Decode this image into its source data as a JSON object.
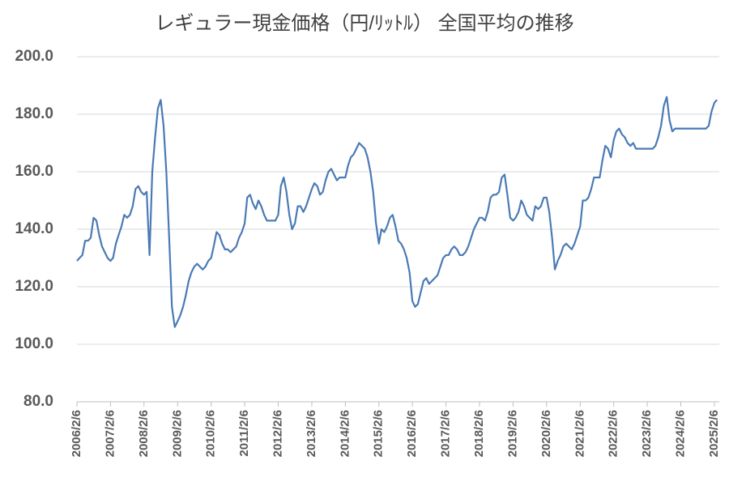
{
  "chart_data": {
    "type": "line",
    "title": "レギュラー現金価格（円/ﾘｯﾄﾙ） 全国平均の推移",
    "x": [
      "2006/2/6",
      "2006/3/6",
      "2006/4/6",
      "2006/5/6",
      "2006/6/6",
      "2006/7/6",
      "2006/8/6",
      "2006/9/6",
      "2006/10/6",
      "2006/11/6",
      "2006/12/6",
      "2007/1/6",
      "2007/2/6",
      "2007/3/6",
      "2007/4/6",
      "2007/5/6",
      "2007/6/6",
      "2007/7/6",
      "2007/8/6",
      "2007/9/6",
      "2007/10/6",
      "2007/11/6",
      "2007/12/6",
      "2008/1/6",
      "2008/2/6",
      "2008/3/6",
      "2008/4/6",
      "2008/5/6",
      "2008/6/6",
      "2008/7/6",
      "2008/8/6",
      "2008/9/6",
      "2008/10/6",
      "2008/11/6",
      "2008/12/6",
      "2009/1/6",
      "2009/2/6",
      "2009/3/6",
      "2009/4/6",
      "2009/5/6",
      "2009/6/6",
      "2009/7/6",
      "2009/8/6",
      "2009/9/6",
      "2009/10/6",
      "2009/11/6",
      "2009/12/6",
      "2010/1/6",
      "2010/2/6",
      "2010/3/6",
      "2010/4/6",
      "2010/5/6",
      "2010/6/6",
      "2010/7/6",
      "2010/8/6",
      "2010/9/6",
      "2010/10/6",
      "2010/11/6",
      "2010/12/6",
      "2011/1/6",
      "2011/2/6",
      "2011/3/6",
      "2011/4/6",
      "2011/5/6",
      "2011/6/6",
      "2011/7/6",
      "2011/8/6",
      "2011/9/6",
      "2011/10/6",
      "2011/11/6",
      "2011/12/6",
      "2012/1/6",
      "2012/2/6",
      "2012/3/6",
      "2012/4/6",
      "2012/5/6",
      "2012/6/6",
      "2012/7/6",
      "2012/8/6",
      "2012/9/6",
      "2012/10/6",
      "2012/11/6",
      "2012/12/6",
      "2013/1/6",
      "2013/2/6",
      "2013/3/6",
      "2013/4/6",
      "2013/5/6",
      "2013/6/6",
      "2013/7/6",
      "2013/8/6",
      "2013/9/6",
      "2013/10/6",
      "2013/11/6",
      "2013/12/6",
      "2014/1/6",
      "2014/2/6",
      "2014/3/6",
      "2014/4/6",
      "2014/5/6",
      "2014/6/6",
      "2014/7/6",
      "2014/8/6",
      "2014/9/6",
      "2014/10/6",
      "2014/11/6",
      "2014/12/6",
      "2015/1/6",
      "2015/2/6",
      "2015/3/6",
      "2015/4/6",
      "2015/5/6",
      "2015/6/6",
      "2015/7/6",
      "2015/8/6",
      "2015/9/6",
      "2015/10/6",
      "2015/11/6",
      "2015/12/6",
      "2016/1/6",
      "2016/2/6",
      "2016/3/6",
      "2016/4/6",
      "2016/5/6",
      "2016/6/6",
      "2016/7/6",
      "2016/8/6",
      "2016/9/6",
      "2016/10/6",
      "2016/11/6",
      "2016/12/6",
      "2017/1/6",
      "2017/2/6",
      "2017/3/6",
      "2017/4/6",
      "2017/5/6",
      "2017/6/6",
      "2017/7/6",
      "2017/8/6",
      "2017/9/6",
      "2017/10/6",
      "2017/11/6",
      "2017/12/6",
      "2018/1/6",
      "2018/2/6",
      "2018/3/6",
      "2018/4/6",
      "2018/5/6",
      "2018/6/6",
      "2018/7/6",
      "2018/8/6",
      "2018/9/6",
      "2018/10/6",
      "2018/11/6",
      "2018/12/6",
      "2019/1/6",
      "2019/2/6",
      "2019/3/6",
      "2019/4/6",
      "2019/5/6",
      "2019/6/6",
      "2019/7/6",
      "2019/8/6",
      "2019/9/6",
      "2019/10/6",
      "2019/11/6",
      "2019/12/6",
      "2020/1/6",
      "2020/2/6",
      "2020/3/6",
      "2020/4/6",
      "2020/5/6",
      "2020/6/6",
      "2020/7/6",
      "2020/8/6",
      "2020/9/6",
      "2020/10/6",
      "2020/11/6",
      "2020/12/6",
      "2021/1/6",
      "2021/2/6",
      "2021/3/6",
      "2021/4/6",
      "2021/5/6",
      "2021/6/6",
      "2021/7/6",
      "2021/8/6",
      "2021/9/6",
      "2021/10/6",
      "2021/11/6",
      "2021/12/6",
      "2022/1/6",
      "2022/2/6",
      "2022/3/6",
      "2022/4/6",
      "2022/5/6",
      "2022/6/6",
      "2022/7/6",
      "2022/8/6",
      "2022/9/6",
      "2022/10/6",
      "2022/11/6",
      "2022/12/6",
      "2023/1/6",
      "2023/2/6",
      "2023/3/6",
      "2023/4/6",
      "2023/5/6",
      "2023/6/6",
      "2023/7/6",
      "2023/8/6",
      "2023/9/6",
      "2023/10/6",
      "2023/11/6",
      "2023/12/6",
      "2024/1/6",
      "2024/2/6",
      "2024/3/6",
      "2024/4/6",
      "2024/5/6",
      "2024/6/6",
      "2024/7/6",
      "2024/8/6",
      "2024/9/6",
      "2024/10/6",
      "2024/11/6",
      "2024/12/6",
      "2025/1/6",
      "2025/2/6",
      "2025/3/6"
    ],
    "series": [
      {
        "color": "#4a7ab5",
        "values": [
          129,
          130,
          131,
          136,
          136,
          137,
          144,
          143,
          138,
          134,
          132,
          130,
          129,
          130,
          135,
          138,
          141,
          145,
          144,
          145,
          148,
          154,
          155,
          153,
          152,
          153,
          131,
          160,
          172,
          182,
          185,
          176,
          160,
          137,
          113,
          106,
          108,
          110,
          113,
          117,
          122,
          125,
          127,
          128,
          127,
          126,
          127,
          129,
          130,
          134,
          139,
          138,
          135,
          133,
          133,
          132,
          133,
          134,
          137,
          139,
          142,
          151,
          152,
          149,
          147,
          150,
          148,
          145,
          143,
          143,
          143,
          143,
          145,
          155,
          158,
          153,
          145,
          140,
          142,
          148,
          148,
          146,
          148,
          151,
          154,
          156,
          155,
          152,
          153,
          157,
          160,
          161,
          159,
          157,
          158,
          158,
          158,
          162,
          165,
          166,
          168,
          170,
          169,
          168,
          165,
          160,
          153,
          142,
          135,
          140,
          139,
          141,
          144,
          145,
          141,
          136,
          135,
          133,
          130,
          125,
          115,
          113,
          114,
          118,
          122,
          123,
          121,
          122,
          123,
          124,
          127,
          130,
          131,
          131,
          133,
          134,
          133,
          131,
          131,
          132,
          134,
          137,
          140,
          142,
          144,
          144,
          143,
          146,
          151,
          152,
          152,
          153,
          158,
          159,
          152,
          144,
          143,
          144,
          146,
          150,
          148,
          145,
          144,
          143,
          148,
          147,
          148,
          151,
          151,
          146,
          137,
          126,
          129,
          131,
          134,
          135,
          134,
          133,
          135,
          138,
          141,
          150,
          150,
          151,
          154,
          158,
          158,
          158,
          164,
          169,
          168,
          165,
          171,
          174,
          175,
          173,
          172,
          170,
          169,
          170,
          168,
          168,
          168,
          168,
          168,
          168,
          168,
          169,
          172,
          176,
          183,
          186,
          178,
          174,
          175,
          175,
          175,
          175,
          175,
          175,
          175,
          175,
          175,
          175,
          175,
          175,
          176,
          181,
          184,
          185
        ]
      }
    ],
    "xlim": [
      "2006/2/6",
      "2025/3/31"
    ],
    "xticks": [
      "2006/2/6",
      "2007/2/6",
      "2008/2/6",
      "2009/2/6",
      "2010/2/6",
      "2011/2/6",
      "2012/2/6",
      "2013/2/6",
      "2014/2/6",
      "2015/2/6",
      "2016/2/6",
      "2017/2/6",
      "2018/2/6",
      "2019/2/6",
      "2020/2/6",
      "2021/2/6",
      "2022/2/6",
      "2023/2/6",
      "2024/2/6",
      "2025/2/6"
    ],
    "ylim": [
      80,
      200
    ],
    "yticks": [
      {
        "value": 80,
        "label": "80.0"
      },
      {
        "value": 100,
        "label": "100.0"
      },
      {
        "value": 120,
        "label": "120.0"
      },
      {
        "value": 140,
        "label": "140.0"
      },
      {
        "value": 160,
        "label": "160.0"
      },
      {
        "value": 180,
        "label": "180.0"
      },
      {
        "value": 200,
        "label": "200.0"
      }
    ],
    "grid": true
  }
}
